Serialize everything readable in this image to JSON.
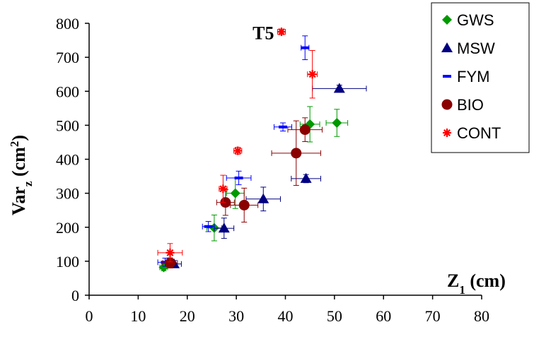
{
  "chart_data": {
    "type": "scatter",
    "xlabel_main": "Z",
    "xlabel_sub": "1",
    "xlabel_unit": " (cm)",
    "ylabel_main": "Var",
    "ylabel_sub": "z",
    "ylabel_unit_prefix": " (cm",
    "ylabel_sup": "2",
    "ylabel_unit_suffix": ")",
    "xlim": [
      0,
      80
    ],
    "ylim": [
      0,
      800
    ],
    "xticks": [
      "0",
      "10",
      "20",
      "30",
      "40",
      "50",
      "60",
      "70",
      "80"
    ],
    "yticks": [
      "0",
      "100",
      "200",
      "300",
      "400",
      "500",
      "600",
      "700",
      "800"
    ],
    "grid": false,
    "legend_position": "top-right",
    "annotations": [
      {
        "text": "T5",
        "x": 35.5,
        "y": 770
      }
    ],
    "series": [
      {
        "name": "GWS",
        "marker": "diamond",
        "color": "#009900",
        "points": [
          {
            "x": 15.2,
            "y": 82,
            "xerr": 0.8,
            "yerr": 10
          },
          {
            "x": 25.5,
            "y": 198,
            "xerr": 1.5,
            "yerr": 38
          },
          {
            "x": 29.8,
            "y": 300,
            "xerr": 1.8,
            "yerr": 45
          },
          {
            "x": 45.0,
            "y": 503,
            "xerr": 2.0,
            "yerr": 52
          },
          {
            "x": 50.5,
            "y": 507,
            "xerr": 2.2,
            "yerr": 40
          }
        ]
      },
      {
        "name": "MSW",
        "marker": "triangle",
        "color": "#000080",
        "points": [
          {
            "x": 17.3,
            "y": 92,
            "xerr": 1.5,
            "yerr": 10
          },
          {
            "x": 27.5,
            "y": 197,
            "xerr": 2.0,
            "yerr": 30
          },
          {
            "x": 35.5,
            "y": 283,
            "xerr": 3.5,
            "yerr": 35
          },
          {
            "x": 44.2,
            "y": 343,
            "xerr": 3.0,
            "yerr": 12
          },
          {
            "x": 51.0,
            "y": 608,
            "xerr": 5.5,
            "yerr": 10
          }
        ]
      },
      {
        "name": "FYM",
        "marker": "dash",
        "color": "#0000ff",
        "points": [
          {
            "x": 15.5,
            "y": 97,
            "xerr": 1.5,
            "yerr": 12
          },
          {
            "x": 24.3,
            "y": 202,
            "xerr": 1.2,
            "yerr": 15
          },
          {
            "x": 30.5,
            "y": 345,
            "xerr": 2.5,
            "yerr": 20
          },
          {
            "x": 39.5,
            "y": 495,
            "xerr": 1.8,
            "yerr": 12
          },
          {
            "x": 44.0,
            "y": 728,
            "xerr": 0.8,
            "yerr": 35
          }
        ]
      },
      {
        "name": "BIO",
        "marker": "circle",
        "color": "#8b0000",
        "points": [
          {
            "x": 16.5,
            "y": 95,
            "xerr": 1.5,
            "yerr": 15
          },
          {
            "x": 27.8,
            "y": 273,
            "xerr": 1.8,
            "yerr": 38
          },
          {
            "x": 31.6,
            "y": 265,
            "xerr": 2.8,
            "yerr": 50
          },
          {
            "x": 42.2,
            "y": 418,
            "xerr": 5.0,
            "yerr": 95
          },
          {
            "x": 44.0,
            "y": 487,
            "xerr": 3.5,
            "yerr": 35
          }
        ]
      },
      {
        "name": "CONT",
        "marker": "asterisk",
        "color": "#ff0000",
        "points": [
          {
            "x": 16.5,
            "y": 125,
            "xerr": 2.5,
            "yerr": 27
          },
          {
            "x": 27.3,
            "y": 313,
            "xerr": 0.8,
            "yerr": 40
          },
          {
            "x": 30.3,
            "y": 425,
            "xerr": 0.8,
            "yerr": 10
          },
          {
            "x": 39.2,
            "y": 775,
            "xerr": 0.8,
            "yerr": 8
          },
          {
            "x": 45.5,
            "y": 650,
            "xerr": 1.0,
            "yerr": 70
          }
        ]
      }
    ]
  }
}
